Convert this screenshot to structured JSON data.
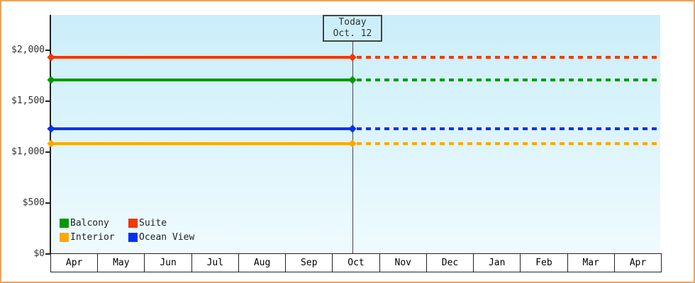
{
  "chart_data": {
    "type": "line",
    "title": "",
    "description": "Cruise cabin price tracker: flat price lines per cabin category, solid history before today, dashed projection after today",
    "series": [
      {
        "name": "Suite",
        "color": "#f23900",
        "price": 1930
      },
      {
        "name": "Balcony",
        "color": "#009900",
        "price": 1710
      },
      {
        "name": "Ocean View",
        "color": "#0033ee",
        "price": 1230
      },
      {
        "name": "Interior",
        "color": "#ffa800",
        "price": 1080
      }
    ],
    "x_axis": {
      "months": [
        "Apr",
        "May",
        "Jun",
        "Jul",
        "Aug",
        "Sep",
        "Oct",
        "Nov",
        "Dec",
        "Jan",
        "Feb",
        "Mar",
        "Apr"
      ]
    },
    "y_axis": {
      "ticks": [
        {
          "label": "$0",
          "value": 0
        },
        {
          "label": "$500",
          "value": 500
        },
        {
          "label": "$1,000",
          "value": 1000
        },
        {
          "label": "$1,500",
          "value": 1500
        },
        {
          "label": "$2,000",
          "value": 2000
        }
      ],
      "ylim": [
        0,
        2340
      ],
      "grid": false
    },
    "today": {
      "line1": "Today",
      "line2": "Oct. 12",
      "month": "Oct",
      "day": 12
    },
    "legend": {
      "position": "bottom-left",
      "order": [
        "Balcony",
        "Suite",
        "Interior",
        "Ocean View"
      ]
    },
    "line_style": {
      "before_today": "solid",
      "after_today": "dashed",
      "marker": "diamond"
    }
  },
  "frame": {
    "border_color": "#eaa55e",
    "background": "#ffffff",
    "plot_bg_top": "#cbeefa",
    "plot_bg_bottom": "#effbfe"
  }
}
